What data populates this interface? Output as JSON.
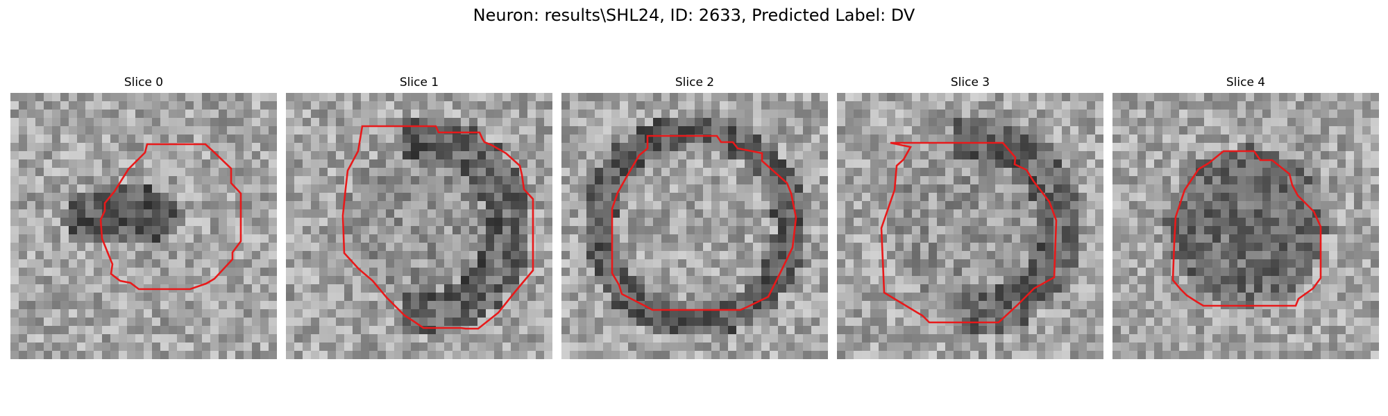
{
  "figure": {
    "title": "Neuron: results\\SHL24, ID: 2633, Predicted Label: DV"
  },
  "panels": [
    {
      "title": "Slice 0",
      "seed": 11,
      "darkness": "left-blob",
      "contour_color": "#e8191a"
    },
    {
      "title": "Slice 1",
      "seed": 23,
      "darkness": "right-ring",
      "contour_color": "#e8191a"
    },
    {
      "title": "Slice 2",
      "seed": 37,
      "darkness": "full-ring",
      "contour_color": "#e8191a"
    },
    {
      "title": "Slice 3",
      "seed": 41,
      "darkness": "right-ring",
      "contour_color": "#e8191a"
    },
    {
      "title": "Slice 4",
      "seed": 53,
      "darkness": "center-blob",
      "contour_color": "#e8191a"
    }
  ]
}
